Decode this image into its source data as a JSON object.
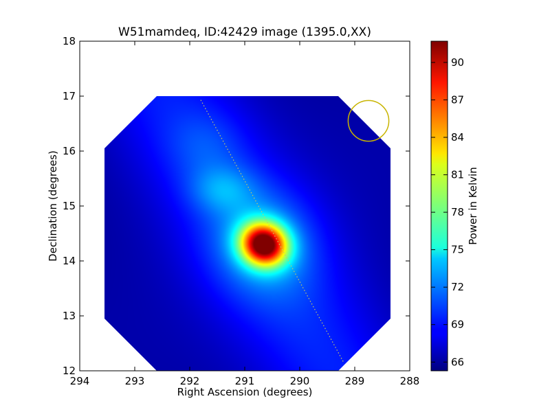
{
  "chart_data": {
    "type": "heatmap",
    "title": "W51mamdeq, ID:42429 image (1395.0,XX)",
    "xlabel": "Right Ascension (degrees)",
    "ylabel": "Declination (degrees)",
    "xlim": [
      294,
      288
    ],
    "ylim": [
      12,
      18
    ],
    "x_ticks": [
      294,
      293,
      292,
      291,
      290,
      289,
      288
    ],
    "y_ticks": [
      12,
      13,
      14,
      15,
      16,
      17,
      18
    ],
    "colormap": "jet",
    "colorbar": {
      "label": "Power in Kelvin",
      "min": 65.3,
      "max": 91.7,
      "ticks": [
        66,
        69,
        72,
        75,
        78,
        81,
        84,
        87,
        90
      ]
    },
    "map_footprint": {
      "ra_range": [
        293.55,
        288.35
      ],
      "dec_range": [
        12.0,
        17.0
      ],
      "corner_cut_deg": 0.95
    },
    "peak": {
      "ra": 290.65,
      "dec": 14.3,
      "value": 91.5
    },
    "features": [
      {
        "ra": 291.4,
        "dec": 15.3,
        "value": 73,
        "note": "fainter ridge northwest of peak"
      },
      {
        "ra": 291.7,
        "dec": 16.1,
        "value": 70,
        "note": "diffuse emission"
      }
    ],
    "scan_track": {
      "from": [
        291.8,
        16.93
      ],
      "to": [
        289.2,
        12.15
      ],
      "color": "#c8c864"
    },
    "beam_circle": {
      "ra": 288.75,
      "dec": 16.55,
      "radius_deg": 0.37,
      "color": "#c8b400"
    }
  }
}
